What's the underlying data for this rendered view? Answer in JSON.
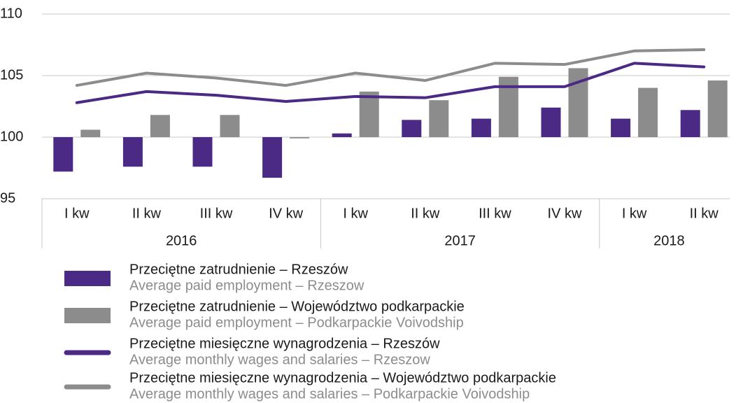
{
  "chart_data": {
    "type": "bar_line",
    "groups": [
      {
        "name": "2016",
        "categories": [
          "I kw",
          "II kw",
          "III kw",
          "IV kw"
        ]
      },
      {
        "name": "2017",
        "categories": [
          "I kw",
          "II kw",
          "III kw",
          "IV kw"
        ]
      },
      {
        "name": "2018",
        "categories": [
          "I kw",
          "II kw"
        ]
      }
    ],
    "series": [
      {
        "name": "Przeciętne zatrudnienie – Rzeszów",
        "name_en": "Average paid employment – Rzeszow",
        "kind": "bar",
        "color": "#4b2a86",
        "values": [
          97.2,
          97.6,
          97.6,
          96.7,
          100.3,
          101.4,
          101.5,
          102.4,
          101.5,
          102.2
        ]
      },
      {
        "name": "Przeciętne zatrudnienie – Województwo podkarpackie",
        "name_en": "Average paid employment – Podkarpackie Voivodship",
        "kind": "bar",
        "color": "#8c8c8c",
        "values": [
          100.6,
          101.8,
          101.8,
          99.9,
          103.7,
          103.0,
          104.9,
          105.6,
          104.0,
          104.6
        ]
      },
      {
        "name": "Przeciętne miesięczne wynagrodzenia  – Rzeszów",
        "name_en": "Average monthly wages and salaries – Rzeszow",
        "kind": "line",
        "color": "#4b2a86",
        "values": [
          102.8,
          103.7,
          103.4,
          102.9,
          103.3,
          103.2,
          104.1,
          104.1,
          106.0,
          105.7
        ]
      },
      {
        "name": "Przeciętne miesięczne wynagrodzenia – Województwo podkarpackie",
        "name_en": "Average monthly wages and salaries – Podkarpackie Voivodship",
        "kind": "line",
        "color": "#8c8c8c",
        "values": [
          104.2,
          105.2,
          104.8,
          104.2,
          105.2,
          104.6,
          106.0,
          105.9,
          107.0,
          107.1
        ]
      }
    ],
    "ylim": [
      95,
      110
    ],
    "yticks": [
      95,
      100,
      105,
      110
    ],
    "grid": true,
    "baseline": 100
  }
}
